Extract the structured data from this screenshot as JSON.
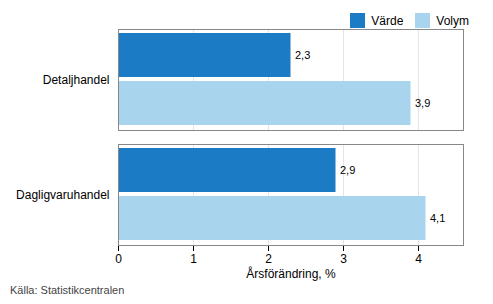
{
  "chart_data": {
    "type": "bar",
    "orientation": "horizontal",
    "categories": [
      "Detaljhandel",
      "Dagligvaruhandel"
    ],
    "series": [
      {
        "name": "Värde",
        "color": "#1B7BC4",
        "values": [
          2.3,
          2.9
        ],
        "value_labels": [
          "2,3",
          "2,9"
        ]
      },
      {
        "name": "Volym",
        "color": "#A8D4EE",
        "values": [
          3.9,
          4.1
        ],
        "value_labels": [
          "3,9",
          "4,1"
        ]
      }
    ],
    "xlabel": "Årsförändring, %",
    "xlim": [
      0,
      4.6
    ],
    "xticks": [
      0,
      1,
      2,
      3,
      4
    ],
    "grid": true,
    "legend": "upper right",
    "data_labels": true,
    "annotations": [
      "Källa: Statistikcentralen"
    ]
  }
}
